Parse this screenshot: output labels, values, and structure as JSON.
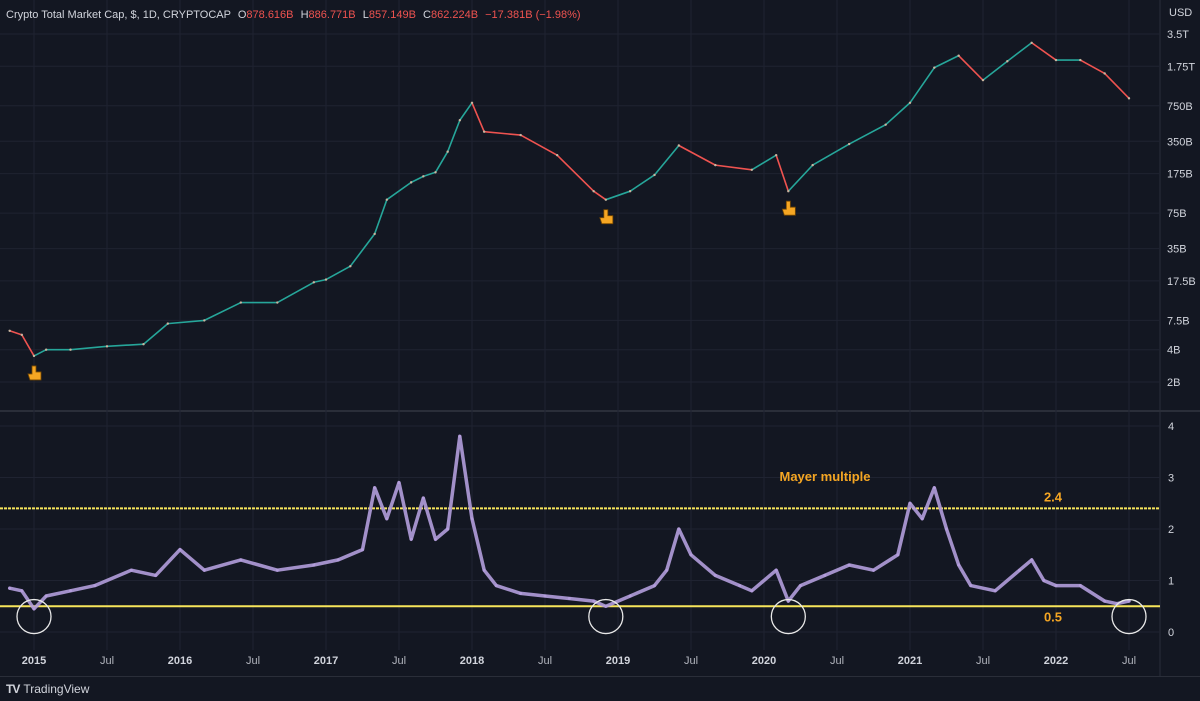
{
  "header": {
    "symbol": "Crypto Total Market Cap, $, 1D, CRYPTOCAP",
    "open_label": "O",
    "open": "878.616B",
    "high_label": "H",
    "high": "886.771B",
    "low_label": "L",
    "low": "857.149B",
    "close_label": "C",
    "close": "862.224B",
    "change": "−17.381B (−1.98%)"
  },
  "currency": "USD",
  "branding": {
    "logo": "TV",
    "name": "TradingView"
  },
  "colors": {
    "background": "#131722",
    "up": "#26a69a",
    "down": "#ef5350",
    "mayer": "#b39ddb",
    "threshold": "#f7e55b",
    "annotation": "#f5a623"
  },
  "chart_data": [
    {
      "type": "line",
      "name": "price",
      "scale": "log",
      "y_unit": "USD",
      "yticks": [
        "3.5T",
        "1.75T",
        "750B",
        "350B",
        "175B",
        "75B",
        "35B",
        "17.5B",
        "7.5B",
        "4B",
        "2B"
      ],
      "x_ticks": [
        "2015",
        "Jul",
        "2016",
        "Jul",
        "2017",
        "Jul",
        "2018",
        "Jul",
        "2019",
        "Jul",
        "2020",
        "Jul",
        "2021",
        "Jul",
        "2022",
        "Jul"
      ],
      "x": [
        "2014-11",
        "2014-12",
        "2015-01",
        "2015-02",
        "2015-04",
        "2015-07",
        "2015-10",
        "2015-12",
        "2016-03",
        "2016-06",
        "2016-09",
        "2016-12",
        "2017-01",
        "2017-03",
        "2017-05",
        "2017-06",
        "2017-08",
        "2017-09",
        "2017-10",
        "2017-11",
        "2017-12",
        "2018-01",
        "2018-02",
        "2018-05",
        "2018-08",
        "2018-11",
        "2018-12",
        "2019-02",
        "2019-04",
        "2019-06",
        "2019-09",
        "2019-12",
        "2020-02",
        "2020-03",
        "2020-05",
        "2020-08",
        "2020-11",
        "2021-01",
        "2021-03",
        "2021-05",
        "2021-07",
        "2021-09",
        "2021-11",
        "2022-01",
        "2022-03",
        "2022-05",
        "2022-07"
      ],
      "y_billions": [
        6,
        5.5,
        3.5,
        4,
        4,
        4.3,
        4.5,
        7,
        7.5,
        11,
        11,
        17,
        18,
        24,
        48,
        100,
        145,
        165,
        180,
        280,
        550,
        800,
        430,
        400,
        260,
        120,
        100,
        120,
        170,
        320,
        210,
        190,
        260,
        120,
        210,
        330,
        500,
        800,
        1700,
        2200,
        1300,
        1950,
        2900,
        2000,
        2000,
        1500,
        880
      ],
      "markers": [
        {
          "x": "2015-01",
          "y_billions": 3.5
        },
        {
          "x": "2018-12",
          "y_billions": 100
        },
        {
          "x": "2020-03",
          "y_billions": 120
        }
      ]
    },
    {
      "type": "line",
      "name": "Mayer multiple",
      "yticks": [
        0,
        1,
        2,
        3,
        4
      ],
      "ylim": [
        0,
        4.2
      ],
      "x": [
        "2014-11",
        "2014-12",
        "2015-01",
        "2015-02",
        "2015-04",
        "2015-06",
        "2015-09",
        "2015-11",
        "2016-01",
        "2016-03",
        "2016-06",
        "2016-09",
        "2016-12",
        "2017-02",
        "2017-04",
        "2017-05",
        "2017-06",
        "2017-07",
        "2017-08",
        "2017-09",
        "2017-10",
        "2017-11",
        "2017-12",
        "2018-01",
        "2018-02",
        "2018-03",
        "2018-05",
        "2018-07",
        "2018-09",
        "2018-11",
        "2018-12",
        "2019-02",
        "2019-04",
        "2019-05",
        "2019-06",
        "2019-07",
        "2019-09",
        "2019-11",
        "2019-12",
        "2020-02",
        "2020-03",
        "2020-04",
        "2020-06",
        "2020-08",
        "2020-10",
        "2020-12",
        "2021-01",
        "2021-02",
        "2021-03",
        "2021-04",
        "2021-05",
        "2021-06",
        "2021-08",
        "2021-10",
        "2021-11",
        "2021-12",
        "2022-01",
        "2022-03",
        "2022-05",
        "2022-06",
        "2022-07"
      ],
      "y": [
        0.85,
        0.8,
        0.45,
        0.7,
        0.8,
        0.9,
        1.2,
        1.1,
        1.6,
        1.2,
        1.4,
        1.2,
        1.3,
        1.4,
        1.6,
        2.8,
        2.2,
        2.9,
        1.8,
        2.6,
        1.8,
        2.0,
        3.8,
        2.2,
        1.2,
        0.9,
        0.75,
        0.7,
        0.65,
        0.6,
        0.5,
        0.7,
        0.9,
        1.2,
        2.0,
        1.5,
        1.1,
        0.9,
        0.8,
        1.2,
        0.6,
        0.9,
        1.1,
        1.3,
        1.2,
        1.5,
        2.5,
        2.2,
        2.8,
        2.0,
        1.3,
        0.9,
        0.8,
        1.2,
        1.4,
        1.0,
        0.9,
        0.9,
        0.6,
        0.55,
        0.6
      ],
      "thresholds": [
        {
          "value": 2.4,
          "label": "2.4"
        },
        {
          "value": 0.5,
          "label": "0.5"
        }
      ],
      "annotation": "Mayer multiple",
      "circled_lows": [
        "2015-01",
        "2018-12",
        "2020-03",
        "2022-07"
      ]
    }
  ]
}
